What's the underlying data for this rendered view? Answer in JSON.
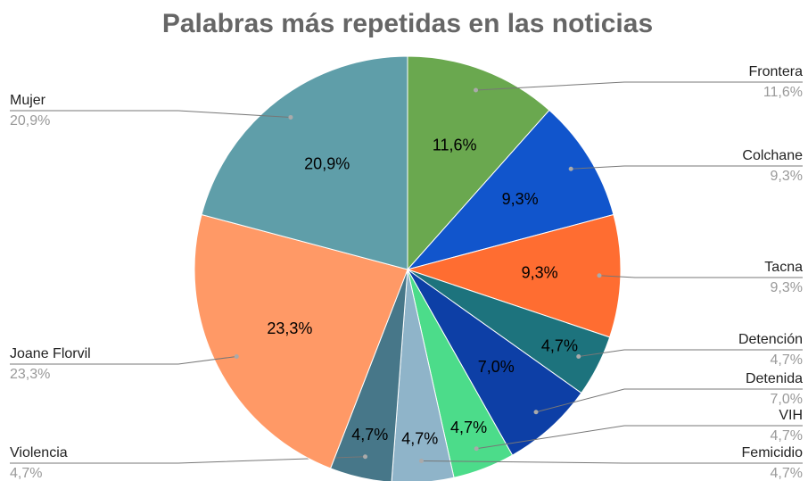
{
  "chart_data": {
    "type": "pie",
    "title": "Palabras más repetidas en las noticias",
    "categories": [
      "Frontera",
      "Colchane",
      "Tacna",
      "Detención",
      "Detenida",
      "VIH",
      "Femicidio",
      "Violencia",
      "Joane Florvil",
      "Mujer"
    ],
    "values": [
      11.6,
      9.3,
      9.3,
      4.7,
      7.0,
      4.7,
      4.7,
      4.7,
      23.3,
      20.9
    ],
    "value_labels": [
      "11,6%",
      "9,3%",
      "9,3%",
      "4,7%",
      "7,0%",
      "4,7%",
      "4,7%",
      "4,7%",
      "23,3%",
      "20,9%"
    ],
    "colors": [
      "#6aa84f",
      "#1155cc",
      "#ff6d31",
      "#1d737d",
      "#0d3fa6",
      "#4cdc8a",
      "#8fb4c9",
      "#477789",
      "#ff9966",
      "#5f9ea9"
    ]
  }
}
